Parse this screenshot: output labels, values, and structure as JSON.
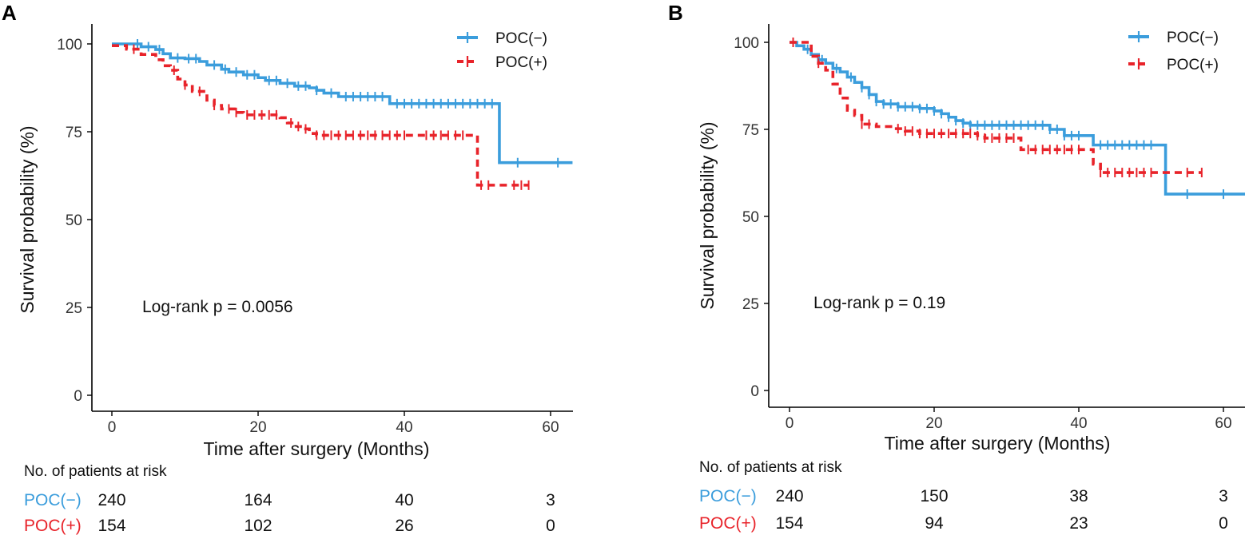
{
  "colors": {
    "poc_neg": "#3b9ddc",
    "poc_pos": "#e8232a"
  },
  "chart_data": [
    {
      "panel_label": "A",
      "type": "line",
      "kind": "kaplan-meier",
      "xlabel": "Time after surgery (Months)",
      "ylabel": "Survival probability (%)",
      "xlim": [
        -5,
        63
      ],
      "ylim": [
        0,
        100
      ],
      "xticks": [
        0,
        20,
        40,
        60
      ],
      "yticks": [
        0,
        25,
        50,
        75,
        100
      ],
      "annotation": "Log-rank p = 0.0056",
      "legend_position": "top-right",
      "series": [
        {
          "name": "POC(−)",
          "color": "#3b9ddc",
          "dash": false,
          "steps": [
            [
              0,
              100
            ],
            [
              4,
              99.2
            ],
            [
              6,
              98.4
            ],
            [
              7,
              97.2
            ],
            [
              8,
              96
            ],
            [
              10,
              95.8
            ],
            [
              12,
              95
            ],
            [
              13,
              94
            ],
            [
              15,
              92.8
            ],
            [
              16,
              92
            ],
            [
              18,
              91.2
            ],
            [
              20,
              90.4
            ],
            [
              21,
              89.6
            ],
            [
              23,
              88.8
            ],
            [
              25,
              88
            ],
            [
              27,
              87.5
            ],
            [
              28,
              86.8
            ],
            [
              29,
              86
            ],
            [
              31,
              85
            ],
            [
              38,
              83
            ],
            [
              53,
              83
            ],
            [
              53,
              66.2
            ],
            [
              63,
              66.2
            ]
          ],
          "censor_x": [
            3.5,
            5,
            6.5,
            9,
            10.5,
            11.5,
            14,
            15.5,
            17,
            18.5,
            19.5,
            21.5,
            22.5,
            24,
            25.5,
            26.5,
            28,
            30,
            32,
            33,
            34,
            35,
            36,
            37,
            39,
            40,
            41,
            42,
            43,
            44,
            45,
            46,
            47,
            48,
            49,
            50,
            51,
            52,
            55.5,
            61
          ]
        },
        {
          "name": "POC(+)",
          "color": "#e8232a",
          "dash": true,
          "steps": [
            [
              0,
              99.5
            ],
            [
              2,
              98.5
            ],
            [
              4,
              97
            ],
            [
              6,
              95.5
            ],
            [
              7,
              93.8
            ],
            [
              8,
              92.5
            ],
            [
              9,
              90
            ],
            [
              10,
              88.3
            ],
            [
              11,
              86.5
            ],
            [
              13,
              84
            ],
            [
              14,
              82.5
            ],
            [
              15,
              81.5
            ],
            [
              17,
              80.5
            ],
            [
              18,
              79.8
            ],
            [
              23,
              79
            ],
            [
              24,
              77.5
            ],
            [
              25,
              76.5
            ],
            [
              26,
              75.8
            ],
            [
              27,
              74.5
            ],
            [
              28,
              74
            ],
            [
              50,
              74
            ],
            [
              50,
              59.8
            ],
            [
              57,
              59.8
            ]
          ],
          "censor_x": [
            3,
            8.5,
            10,
            12,
            14,
            16,
            17,
            18.5,
            19.5,
            20.5,
            21.5,
            22.5,
            24.5,
            25.5,
            26.5,
            28,
            29,
            30,
            31,
            32,
            33,
            34,
            35,
            36,
            37,
            38,
            39,
            40,
            43,
            44,
            45,
            46,
            47,
            48,
            50.5,
            51.5,
            55,
            56,
            57
          ]
        }
      ],
      "risk_table": {
        "title": "No. of patients at risk",
        "times": [
          0,
          20,
          40,
          60
        ],
        "rows": [
          {
            "label": "POC(−)",
            "color": "#3b9ddc",
            "values": [
              "240",
              "164",
              "40",
              "3"
            ]
          },
          {
            "label": "POC(+)",
            "color": "#e8232a",
            "values": [
              "154",
              "102",
              "26",
              "0"
            ]
          }
        ]
      }
    },
    {
      "panel_label": "B",
      "type": "line",
      "kind": "kaplan-meier",
      "xlabel": "Time after surgery (Months)",
      "ylabel": "Survival probability (%)",
      "xlim": [
        -3,
        63
      ],
      "ylim": [
        0,
        100
      ],
      "xticks": [
        0,
        20,
        40,
        60
      ],
      "yticks": [
        0,
        25,
        50,
        75,
        100
      ],
      "annotation": "Log-rank p = 0.19",
      "legend_position": "top-right",
      "series": [
        {
          "name": "POC(−)",
          "color": "#3b9ddc",
          "dash": false,
          "steps": [
            [
              0,
              100
            ],
            [
              1,
              99
            ],
            [
              2,
              98
            ],
            [
              3,
              96.5
            ],
            [
              4,
              95
            ],
            [
              5,
              94
            ],
            [
              6,
              92.5
            ],
            [
              7,
              91.5
            ],
            [
              8,
              90
            ],
            [
              9,
              88.5
            ],
            [
              10,
              87
            ],
            [
              11,
              85
            ],
            [
              12,
              83
            ],
            [
              13,
              82.3
            ],
            [
              15,
              81.5
            ],
            [
              18,
              81
            ],
            [
              20,
              80.3
            ],
            [
              21,
              79.5
            ],
            [
              22,
              78.5
            ],
            [
              23,
              77.5
            ],
            [
              24,
              76.8
            ],
            [
              25,
              76.2
            ],
            [
              35,
              76.2
            ],
            [
              36,
              75
            ],
            [
              38,
              73.2
            ],
            [
              41,
              73.2
            ],
            [
              42,
              70.5
            ],
            [
              52,
              70.5
            ],
            [
              52,
              56.4
            ],
            [
              63,
              56.4
            ]
          ],
          "censor_x": [
            2.5,
            4.5,
            6.5,
            8.5,
            10,
            11,
            12,
            13,
            14,
            15,
            16,
            17,
            18,
            19,
            20,
            21,
            22,
            23,
            24,
            25,
            26,
            27,
            28,
            29,
            30,
            31,
            32,
            33,
            34,
            35,
            36,
            37,
            38,
            39,
            40,
            43,
            44,
            45,
            46,
            47,
            48,
            49,
            50,
            55,
            60
          ]
        },
        {
          "name": "POC(+)",
          "color": "#e8232a",
          "dash": true,
          "steps": [
            [
              0,
              100
            ],
            [
              3,
              96
            ],
            [
              4,
              94
            ],
            [
              5,
              92
            ],
            [
              6,
              88
            ],
            [
              7,
              84
            ],
            [
              8,
              80.5
            ],
            [
              9,
              79
            ],
            [
              10,
              76.5
            ],
            [
              12,
              75.8
            ],
            [
              14,
              75.2
            ],
            [
              16,
              74.5
            ],
            [
              18,
              73.8
            ],
            [
              26,
              73.2
            ],
            [
              27,
              72.5
            ],
            [
              32,
              69.2
            ],
            [
              41,
              69.2
            ],
            [
              42,
              65
            ],
            [
              43,
              62.6
            ],
            [
              57,
              62.6
            ]
          ],
          "censor_x": [
            0.5,
            4,
            10,
            11,
            15,
            16,
            17,
            18,
            19,
            20,
            21,
            22,
            23,
            24,
            25,
            26,
            27,
            28,
            29,
            30,
            31,
            33,
            34,
            35,
            36,
            37,
            38,
            39,
            40,
            43,
            44,
            45,
            46,
            47,
            48,
            49,
            50,
            55,
            57
          ]
        }
      ],
      "risk_table": {
        "title": "No. of patients at risk",
        "times": [
          0,
          20,
          40,
          60
        ],
        "rows": [
          {
            "label": "POC(−)",
            "color": "#3b9ddc",
            "values": [
              "240",
              "150",
              "38",
              "3"
            ]
          },
          {
            "label": "POC(+)",
            "color": "#e8232a",
            "values": [
              "154",
              "94",
              "23",
              "0"
            ]
          }
        ]
      }
    }
  ]
}
